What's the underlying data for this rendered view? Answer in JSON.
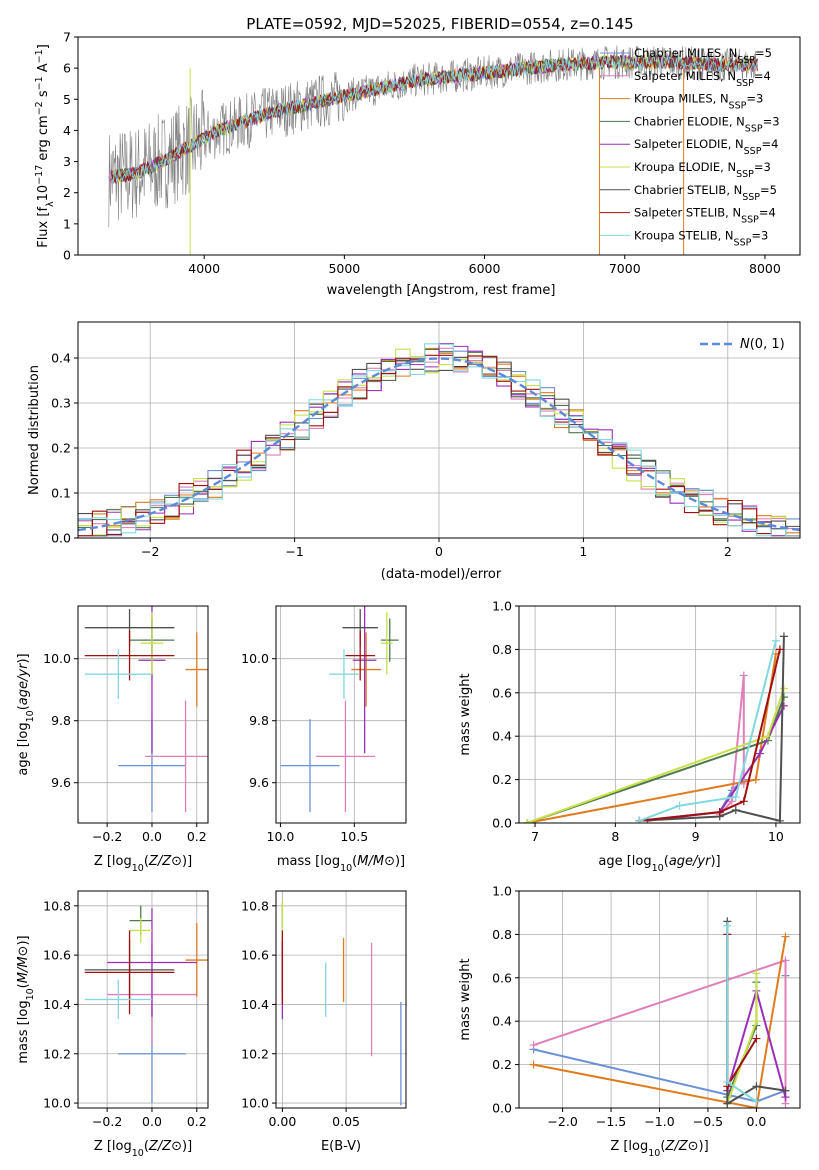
{
  "figure": {
    "title": "PLATE=0592, MJD=52025, FIBERID=0554, z=0.145"
  },
  "colors": {
    "Chabrier MILES": "#6b8fd6",
    "Salpeter MILES": "#e07fba",
    "Kroupa MILES": "#e07b1f",
    "Chabrier ELODIE": "#4c7a4c",
    "Salpeter ELODIE": "#9a2fb5",
    "Kroupa ELODIE": "#c8e04a",
    "Chabrier STELIB": "#505050",
    "Salpeter STELIB": "#a01010",
    "Kroupa STELIB": "#80d8e0",
    "spectrum": "#808080",
    "normal": "#5a8ad8"
  },
  "chart_data": [
    {
      "id": "spectrum",
      "type": "line",
      "title": "PLATE=0592, MJD=52025, FIBERID=0554, z=0.145",
      "xlabel": "wavelength [Angstrom, rest frame]",
      "ylabel_parts": [
        "Flux [f",
        "λ",
        "10",
        "−17",
        " erg cm",
        "−2",
        " s",
        "−1",
        " A",
        "−1",
        "]"
      ],
      "xlim": [
        3100,
        8250
      ],
      "ylim": [
        0,
        7
      ],
      "xticks": [
        4000,
        5000,
        6000,
        7000,
        8000
      ],
      "yticks": [
        0,
        1,
        2,
        3,
        4,
        5,
        6,
        7
      ],
      "legend_position": "right",
      "legend": [
        {
          "name": "Chabrier MILES",
          "sub": "SSP",
          "n": "5"
        },
        {
          "name": "Salpeter MILES",
          "sub": "SSP",
          "n": "4"
        },
        {
          "name": "Kroupa MILES",
          "sub": "SSP",
          "n": "3"
        },
        {
          "name": "Chabrier ELODIE",
          "sub": "SSP",
          "n": "3"
        },
        {
          "name": "Salpeter ELODIE",
          "sub": "SSP",
          "n": "4"
        },
        {
          "name": "Kroupa ELODIE",
          "sub": "SSP",
          "n": "3"
        },
        {
          "name": "Chabrier STELIB",
          "sub": "SSP",
          "n": "5"
        },
        {
          "name": "Salpeter STELIB",
          "sub": "SSP",
          "n": "4"
        },
        {
          "name": "Kroupa STELIB",
          "sub": "SSP",
          "n": "3"
        }
      ],
      "continuum": {
        "x": [
          3320,
          3500,
          3700,
          3900,
          4100,
          4300,
          4500,
          4700,
          4900,
          5100,
          5300,
          5500,
          5700,
          5900,
          6100,
          6300,
          6500,
          6700,
          6900,
          7100,
          7300,
          7500,
          7700,
          7900
        ],
        "y": [
          2.5,
          2.6,
          3.0,
          3.5,
          4.0,
          4.3,
          4.6,
          4.8,
          5.0,
          5.2,
          5.4,
          5.6,
          5.7,
          5.8,
          5.9,
          6.0,
          6.1,
          6.15,
          6.2,
          6.2,
          6.2,
          6.15,
          6.1,
          6.1
        ]
      }
    },
    {
      "id": "residuals",
      "type": "histogram",
      "xlabel": "(data-model)/error",
      "ylabel": "Normed distribution",
      "xlim": [
        -2.5,
        2.5
      ],
      "ylim": [
        0,
        0.48
      ],
      "xticks": [
        -2,
        -1,
        0,
        1,
        2
      ],
      "yticks": [
        0.0,
        0.1,
        0.2,
        0.3,
        0.4
      ],
      "legend": {
        "label": "N(0,1)",
        "position": "top-right"
      },
      "bin_width": 0.1
    },
    {
      "id": "age_Z",
      "type": "errorbar",
      "xlabel": "Z [log10(Z/Z⊙)]",
      "ylabel": "age  [log10(age/yr)]",
      "xlim": [
        -0.33,
        0.25
      ],
      "ylim": [
        9.47,
        10.17
      ],
      "xticks": [
        -0.2,
        0.0,
        0.2
      ],
      "yticks": [
        9.6,
        9.8,
        10.0
      ],
      "points": [
        {
          "model": "Chabrier MILES",
          "x": 0.0,
          "y": 9.655,
          "xerr": 0.15,
          "yerr": 0.15
        },
        {
          "model": "Salpeter MILES",
          "x": 0.15,
          "y": 9.685,
          "xerr": 0.18,
          "yerr": 0.18
        },
        {
          "model": "Kroupa MILES",
          "x": 0.2,
          "y": 9.965,
          "xerr": 0.05,
          "yerr": 0.12
        },
        {
          "model": "Chabrier ELODIE",
          "x": 0.0,
          "y": 10.06,
          "xerr": 0.1,
          "yerr": 0.07
        },
        {
          "model": "Salpeter ELODIE",
          "x": 0.0,
          "y": 9.995,
          "xerr": 0.06,
          "yerr": 0.3
        },
        {
          "model": "Kroupa ELODIE",
          "x": 0.0,
          "y": 10.05,
          "xerr": 0.05,
          "yerr": 0.1
        },
        {
          "model": "Chabrier STELIB",
          "x": -0.1,
          "y": 10.1,
          "xerr": 0.2,
          "yerr": 0.06
        },
        {
          "model": "Salpeter STELIB",
          "x": -0.1,
          "y": 10.01,
          "xerr": 0.2,
          "yerr": 0.08
        },
        {
          "model": "Kroupa STELIB",
          "x": -0.15,
          "y": 9.95,
          "xerr": 0.15,
          "yerr": 0.08
        }
      ]
    },
    {
      "id": "age_mass",
      "type": "errorbar",
      "xlabel": "mass [log10(M/M⊙)]",
      "ylabel": "",
      "xlim": [
        9.97,
        10.85
      ],
      "ylim": [
        9.47,
        10.17
      ],
      "xticks": [
        10.0,
        10.5
      ],
      "yticks": [
        9.6,
        9.8,
        10.0
      ],
      "points": [
        {
          "model": "Chabrier MILES",
          "x": 10.2,
          "y": 9.655,
          "xerr": 0.2,
          "yerr": 0.15
        },
        {
          "model": "Salpeter MILES",
          "x": 10.44,
          "y": 9.685,
          "xerr": 0.2,
          "yerr": 0.18
        },
        {
          "model": "Kroupa MILES",
          "x": 10.58,
          "y": 9.965,
          "xerr": 0.1,
          "yerr": 0.12
        },
        {
          "model": "Chabrier ELODIE",
          "x": 10.74,
          "y": 10.06,
          "xerr": 0.06,
          "yerr": 0.07
        },
        {
          "model": "Salpeter ELODIE",
          "x": 10.57,
          "y": 9.995,
          "xerr": 0.08,
          "yerr": 0.3
        },
        {
          "model": "Kroupa ELODIE",
          "x": 10.72,
          "y": 10.05,
          "xerr": 0.04,
          "yerr": 0.1
        },
        {
          "model": "Chabrier STELIB",
          "x": 10.54,
          "y": 10.1,
          "xerr": 0.12,
          "yerr": 0.06
        },
        {
          "model": "Salpeter STELIB",
          "x": 10.54,
          "y": 10.01,
          "xerr": 0.1,
          "yerr": 0.08
        },
        {
          "model": "Kroupa STELIB",
          "x": 10.43,
          "y": 9.95,
          "xerr": 0.1,
          "yerr": 0.08
        }
      ]
    },
    {
      "id": "weight_age",
      "type": "line",
      "xlabel": "age  [log10(age/yr)]",
      "ylabel": "mass weight",
      "xlim": [
        6.8,
        10.3
      ],
      "ylim": [
        0,
        1.0
      ],
      "xticks": [
        7,
        8,
        9,
        10
      ],
      "yticks": [
        0.0,
        0.2,
        0.4,
        0.6,
        0.8,
        1.0
      ],
      "series": [
        {
          "model": "Chabrier MILES",
          "x": [
            8.3,
            9.3,
            9.45,
            9.6
          ],
          "y": [
            0.01,
            0.05,
            0.15,
            0.2
          ]
        },
        {
          "model": "Salpeter MILES",
          "x": [
            9.3,
            9.45,
            9.6,
            9.6
          ],
          "y": [
            0.04,
            0.1,
            0.68,
            0.18
          ]
        },
        {
          "model": "Kroupa MILES",
          "x": [
            6.9,
            9.75,
            10.0
          ],
          "y": [
            0.0,
            0.2,
            0.78
          ]
        },
        {
          "model": "Chabrier ELODIE",
          "x": [
            6.9,
            9.9,
            10.1
          ],
          "y": [
            0.0,
            0.38,
            0.58
          ]
        },
        {
          "model": "Salpeter ELODIE",
          "x": [
            8.4,
            9.3,
            9.8,
            10.1
          ],
          "y": [
            0.01,
            0.05,
            0.32,
            0.54
          ]
        },
        {
          "model": "Kroupa ELODIE",
          "x": [
            6.9,
            9.9,
            10.1
          ],
          "y": [
            0.0,
            0.4,
            0.62
          ]
        },
        {
          "model": "Chabrier STELIB",
          "x": [
            8.3,
            9.3,
            9.5,
            10.05,
            10.1
          ],
          "y": [
            0.01,
            0.03,
            0.06,
            0.01,
            0.86
          ]
        },
        {
          "model": "Salpeter STELIB",
          "x": [
            8.3,
            9.3,
            9.6,
            10.05
          ],
          "y": [
            0.01,
            0.05,
            0.1,
            0.8
          ]
        },
        {
          "model": "Kroupa STELIB",
          "x": [
            8.3,
            8.8,
            9.5,
            10.0
          ],
          "y": [
            0.01,
            0.08,
            0.12,
            0.84
          ]
        }
      ]
    },
    {
      "id": "mass_Z",
      "type": "errorbar",
      "xlabel": "Z [log10(Z/Z⊙)]",
      "ylabel": "mass [log10(M/M⊙)]",
      "xlim": [
        -0.33,
        0.25
      ],
      "ylim": [
        9.98,
        10.86
      ],
      "xticks": [
        -0.2,
        0.0,
        0.2
      ],
      "yticks": [
        10.0,
        10.2,
        10.4,
        10.6,
        10.8
      ],
      "points": [
        {
          "model": "Chabrier MILES",
          "x": 0.0,
          "y": 10.2,
          "xerr": 0.15,
          "yerr": 0.2
        },
        {
          "model": "Salpeter MILES",
          "x": 0.0,
          "y": 10.44,
          "xerr": 0.2,
          "yerr": 0.2
        },
        {
          "model": "Kroupa MILES",
          "x": 0.2,
          "y": 10.58,
          "xerr": 0.05,
          "yerr": 0.15
        },
        {
          "model": "Chabrier ELODIE",
          "x": -0.05,
          "y": 10.74,
          "xerr": 0.05,
          "yerr": 0.06
        },
        {
          "model": "Salpeter ELODIE",
          "x": 0.0,
          "y": 10.57,
          "xerr": 0.2,
          "yerr": 0.22
        },
        {
          "model": "Kroupa ELODIE",
          "x": -0.05,
          "y": 10.7,
          "xerr": 0.05,
          "yerr": 0.05
        },
        {
          "model": "Chabrier STELIB",
          "x": -0.1,
          "y": 10.54,
          "xerr": 0.2,
          "yerr": 0.12
        },
        {
          "model": "Salpeter STELIB",
          "x": -0.1,
          "y": 10.53,
          "xerr": 0.2,
          "yerr": 0.17
        },
        {
          "model": "Kroupa STELIB",
          "x": -0.15,
          "y": 10.42,
          "xerr": 0.15,
          "yerr": 0.08
        }
      ]
    },
    {
      "id": "mass_ebv",
      "type": "errorbar",
      "xlabel": "E(B-V)",
      "ylabel": "",
      "xlim": [
        -0.005,
        0.097
      ],
      "ylim": [
        9.98,
        10.86
      ],
      "xticks": [
        0.0,
        0.05
      ],
      "yticks": [
        10.0,
        10.2,
        10.4,
        10.6,
        10.8
      ],
      "points": [
        {
          "model": "Chabrier MILES",
          "x": 0.093,
          "y": 10.2,
          "xerr": 0,
          "yerr": 0.21
        },
        {
          "model": "Salpeter MILES",
          "x": 0.07,
          "y": 10.42,
          "xerr": 0,
          "yerr": 0.23
        },
        {
          "model": "Kroupa MILES",
          "x": 0.048,
          "y": 10.54,
          "xerr": 0,
          "yerr": 0.13
        },
        {
          "model": "Chabrier ELODIE",
          "x": 0.0,
          "y": 10.76,
          "xerr": 0,
          "yerr": 0.05
        },
        {
          "model": "Salpeter ELODIE",
          "x": 0.0,
          "y": 10.5,
          "xerr": 0,
          "yerr": 0.16
        },
        {
          "model": "Kroupa ELODIE",
          "x": 0.0,
          "y": 10.74,
          "xerr": 0,
          "yerr": 0.08
        },
        {
          "model": "Chabrier STELIB",
          "x": 0.0,
          "y": 10.55,
          "xerr": 0,
          "yerr": 0.1
        },
        {
          "model": "Salpeter STELIB",
          "x": 0.0,
          "y": 10.55,
          "xerr": 0,
          "yerr": 0.15
        },
        {
          "model": "Kroupa STELIB",
          "x": 0.034,
          "y": 10.46,
          "xerr": 0,
          "yerr": 0.11
        }
      ]
    },
    {
      "id": "weight_Z",
      "type": "line",
      "xlabel": "Z [log10(Z/Z⊙)]",
      "ylabel": "mass weight",
      "xlim": [
        -2.45,
        0.45
      ],
      "ylim": [
        0,
        1.0
      ],
      "xticks": [
        -2.0,
        -1.5,
        -1.0,
        -0.5,
        0.0
      ],
      "yticks": [
        0.0,
        0.2,
        0.4,
        0.6,
        0.8,
        1.0
      ],
      "series": [
        {
          "model": "Chabrier MILES",
          "x": [
            -2.3,
            0.0,
            0.3,
            0.3
          ],
          "y": [
            0.27,
            0.03,
            0.08,
            0.61
          ]
        },
        {
          "model": "Salpeter MILES",
          "x": [
            -2.3,
            0.3,
            0.3
          ],
          "y": [
            0.29,
            0.68,
            0.02
          ]
        },
        {
          "model": "Kroupa MILES",
          "x": [
            -2.3,
            0.0,
            0.3
          ],
          "y": [
            0.2,
            0.0,
            0.79
          ]
        },
        {
          "model": "Chabrier ELODIE",
          "x": [
            -0.3,
            0.0,
            0.0
          ],
          "y": [
            0.05,
            0.38,
            0.58
          ]
        },
        {
          "model": "Salpeter ELODIE",
          "x": [
            -0.3,
            0.0,
            0.3
          ],
          "y": [
            0.08,
            0.54,
            0.05
          ]
        },
        {
          "model": "Kroupa ELODIE",
          "x": [
            -0.3,
            0.0,
            0.0
          ],
          "y": [
            0.02,
            0.4,
            0.62
          ]
        },
        {
          "model": "Chabrier STELIB",
          "x": [
            -0.3,
            -0.3,
            0.0,
            0.3
          ],
          "y": [
            0.86,
            0.02,
            0.1,
            0.08
          ]
        },
        {
          "model": "Salpeter STELIB",
          "x": [
            -0.3,
            -0.3,
            0.0
          ],
          "y": [
            0.8,
            0.1,
            0.32
          ]
        },
        {
          "model": "Kroupa STELIB",
          "x": [
            -0.3,
            -0.3,
            0.0
          ],
          "y": [
            0.84,
            0.12,
            0.03
          ]
        }
      ]
    }
  ]
}
